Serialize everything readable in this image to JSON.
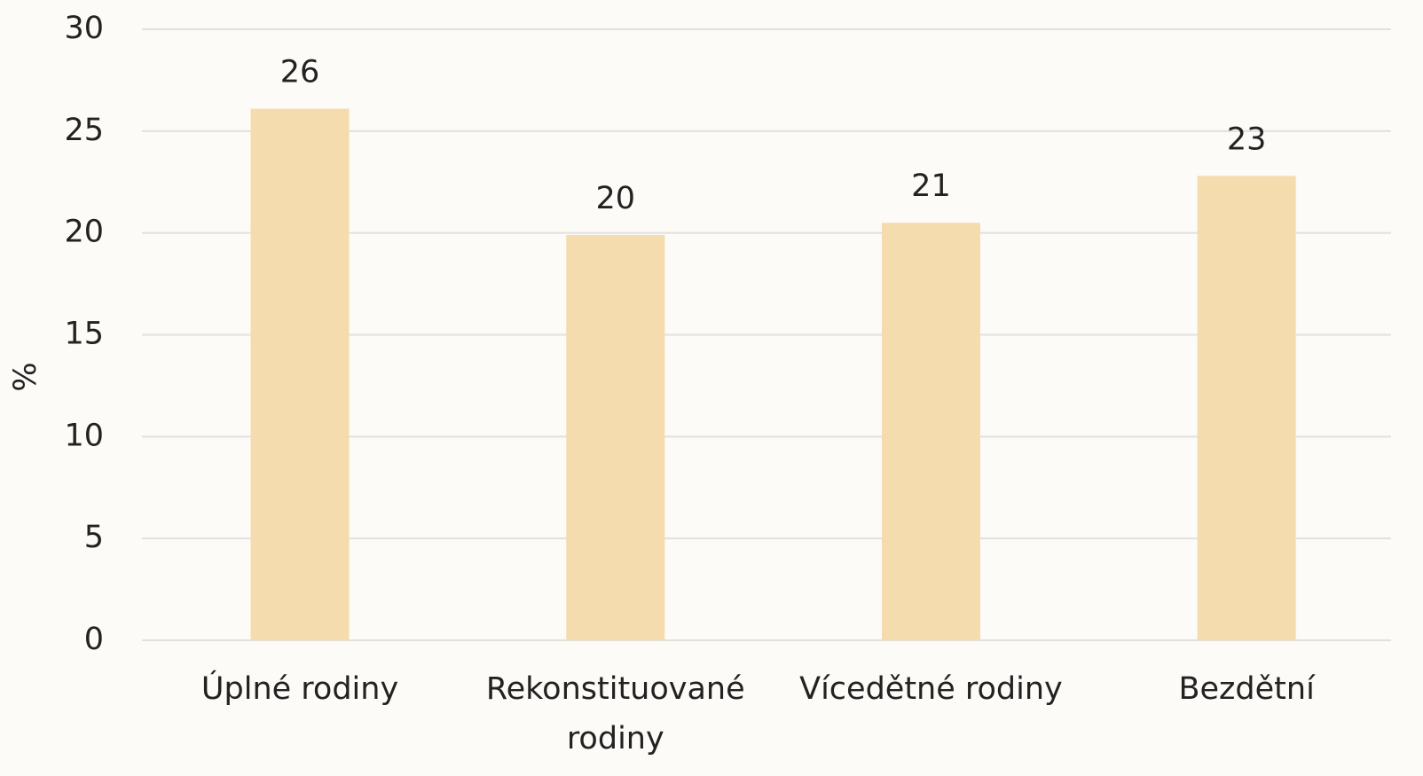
{
  "chart_data": {
    "type": "bar",
    "y_label": "%",
    "categories": [
      "Úplné rodiny",
      "Rekonstituované rodiny",
      "Vícedětné rodiny",
      "Bezdětní"
    ],
    "values": [
      26.1,
      19.9,
      20.5,
      22.8
    ],
    "value_labels": [
      "26",
      "20",
      "21",
      "23"
    ],
    "color": "#f5dcae",
    "ylim": [
      0,
      30
    ],
    "yticks": [
      0,
      5,
      10,
      15,
      20,
      25,
      30
    ],
    "grid": true
  }
}
